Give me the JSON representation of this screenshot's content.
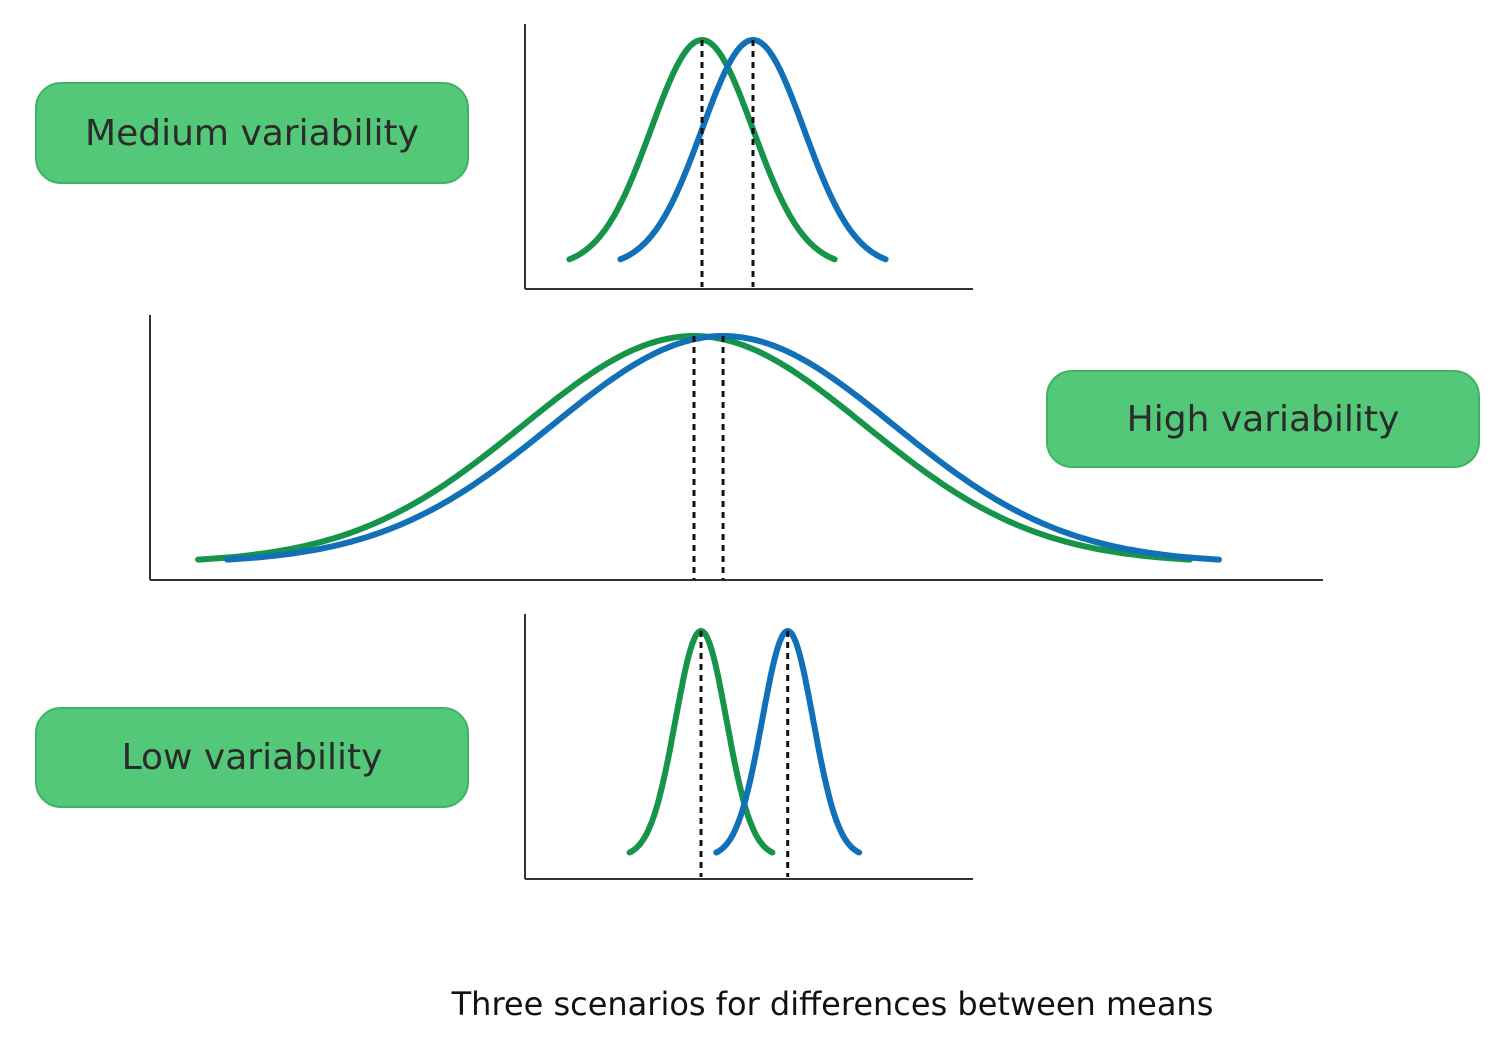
{
  "labels": {
    "medium": "Medium variability",
    "high": "High variability",
    "low": "Low variability"
  },
  "caption": "Three scenarios for differences between means",
  "colors": {
    "group_a": "#16944a",
    "group_b": "#1170b8",
    "axis": "#333333",
    "mean_line": "#111111",
    "label_fill": "#52c878"
  },
  "chart_data": [
    {
      "type": "line",
      "name": "medium",
      "distributions": [
        {
          "color": "group_a",
          "mean": 0,
          "sd": 1,
          "x_range": [
            -2.6,
            2.6
          ]
        },
        {
          "color": "group_b",
          "mean": 1,
          "sd": 1,
          "x_range": [
            -1.6,
            3.6
          ]
        }
      ],
      "mean_lines": [
        0,
        1
      ]
    },
    {
      "type": "line",
      "name": "high",
      "distributions": [
        {
          "color": "group_a",
          "mean": 0,
          "sd": 1,
          "x_range": [
            -2.9,
            2.9
          ]
        },
        {
          "color": "group_b",
          "mean": 0.17,
          "sd": 1,
          "x_range": [
            -2.73,
            3.07
          ]
        }
      ],
      "mean_lines": [
        0,
        0.17
      ]
    },
    {
      "type": "line",
      "name": "low",
      "distributions": [
        {
          "color": "group_a",
          "mean": 0,
          "sd": 1,
          "x_range": [
            -2.8,
            2.8
          ]
        },
        {
          "color": "group_b",
          "mean": 3.4,
          "sd": 1,
          "x_range": [
            0.6,
            6.2
          ]
        }
      ],
      "mean_lines": [
        0,
        3.4
      ]
    }
  ]
}
